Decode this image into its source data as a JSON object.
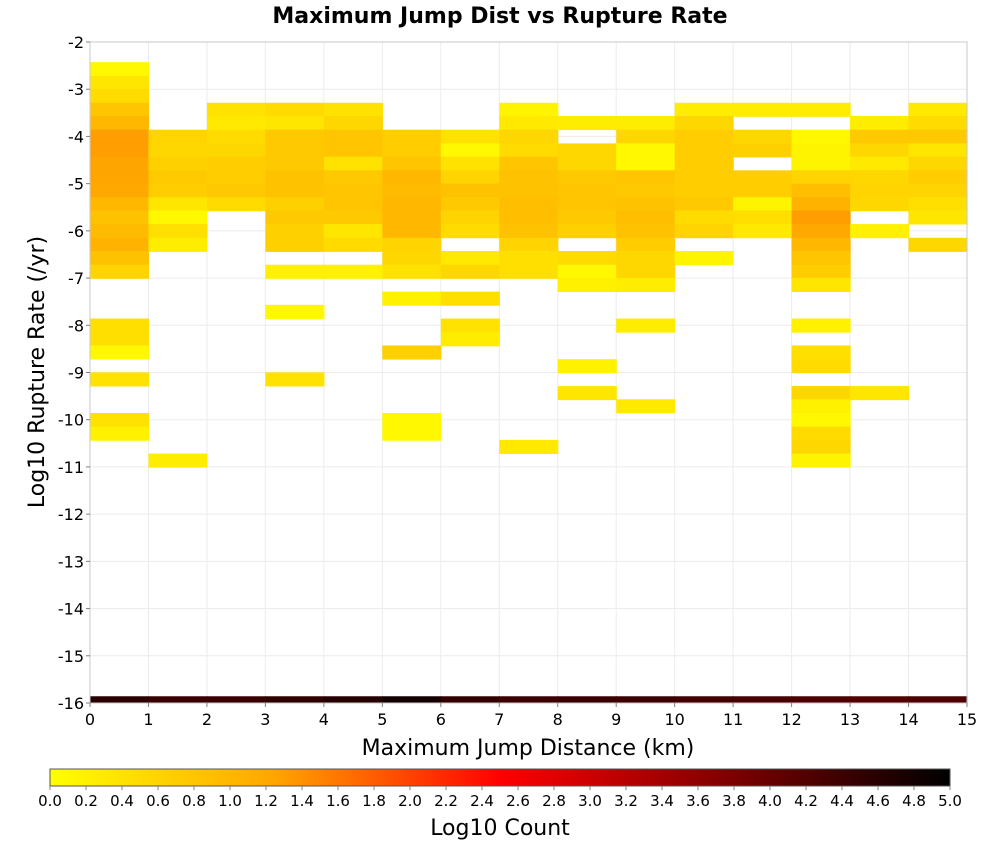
{
  "chart_data": {
    "type": "heatmap",
    "title": "Maximum Jump Dist vs Rupture Rate",
    "xlabel": "Maximum Jump Distance (km)",
    "ylabel": "Log10 Rupture Rate (/yr)",
    "colorbar_label": "Log10 Count",
    "xlim": [
      0,
      15
    ],
    "ylim": [
      -16,
      -2
    ],
    "x_ticks": [
      "0",
      "1",
      "2",
      "3",
      "4",
      "5",
      "6",
      "7",
      "8",
      "9",
      "10",
      "11",
      "12",
      "13",
      "14",
      "15"
    ],
    "y_ticks": [
      "-2",
      "-3",
      "-4",
      "-5",
      "-6",
      "-7",
      "-8",
      "-9",
      "-10",
      "-11",
      "-12",
      "-13",
      "-14",
      "-15",
      "-16"
    ],
    "colorbar_ticks": [
      "0.0",
      "0.2",
      "0.4",
      "0.6",
      "0.8",
      "1.0",
      "1.2",
      "1.4",
      "1.6",
      "1.8",
      "2.0",
      "2.2",
      "2.4",
      "2.6",
      "2.8",
      "3.0",
      "3.2",
      "3.4",
      "3.6",
      "3.8",
      "4.0",
      "4.2",
      "4.4",
      "4.6",
      "4.8",
      "5.0"
    ],
    "colorbar_range": [
      0,
      5
    ],
    "colorscale": [
      "#ffff00",
      "#ffa500",
      "#ff0000",
      "#800000",
      "#000000"
    ],
    "grid": true,
    "x_bin_width": 1,
    "y_bin_height": 0.2857,
    "cells": [
      [
        0,
        -2.57,
        0.1
      ],
      [
        0,
        -2.86,
        0.35
      ],
      [
        0,
        -3.14,
        0.5
      ],
      [
        0,
        -3.43,
        0.8
      ],
      [
        0,
        -3.71,
        1.0
      ],
      [
        0,
        -4.0,
        1.3
      ],
      [
        0,
        -4.29,
        1.3
      ],
      [
        0,
        -4.57,
        1.25
      ],
      [
        0,
        -4.86,
        1.25
      ],
      [
        0,
        -5.14,
        1.2
      ],
      [
        0,
        -5.43,
        1.0
      ],
      [
        0,
        -5.71,
        0.85
      ],
      [
        0,
        -6.0,
        0.95
      ],
      [
        0,
        -6.29,
        1.05
      ],
      [
        0,
        -6.57,
        0.85
      ],
      [
        0,
        -6.86,
        0.6
      ],
      [
        0,
        -8.0,
        0.45
      ],
      [
        0,
        -8.29,
        0.45
      ],
      [
        0,
        -8.57,
        0.1
      ],
      [
        0,
        -9.14,
        0.4
      ],
      [
        0,
        -10.0,
        0.4
      ],
      [
        0,
        -10.29,
        0.2
      ],
      [
        1,
        -4.0,
        0.6
      ],
      [
        1,
        -4.29,
        0.55
      ],
      [
        1,
        -4.57,
        0.65
      ],
      [
        1,
        -4.86,
        0.75
      ],
      [
        1,
        -5.14,
        0.7
      ],
      [
        1,
        -5.43,
        0.35
      ],
      [
        1,
        -5.71,
        0.1
      ],
      [
        1,
        -6.0,
        0.45
      ],
      [
        1,
        -6.29,
        0.25
      ],
      [
        1,
        -10.86,
        0.25
      ],
      [
        2,
        -3.43,
        0.4
      ],
      [
        2,
        -3.71,
        0.3
      ],
      [
        2,
        -4.0,
        0.5
      ],
      [
        2,
        -4.29,
        0.55
      ],
      [
        2,
        -4.57,
        0.7
      ],
      [
        2,
        -4.86,
        0.7
      ],
      [
        2,
        -5.14,
        0.75
      ],
      [
        2,
        -5.43,
        0.5
      ],
      [
        3,
        -3.43,
        0.5
      ],
      [
        3,
        -3.71,
        0.35
      ],
      [
        3,
        -4.0,
        0.75
      ],
      [
        3,
        -4.29,
        0.75
      ],
      [
        3,
        -4.57,
        0.75
      ],
      [
        3,
        -4.86,
        0.85
      ],
      [
        3,
        -5.14,
        0.85
      ],
      [
        3,
        -5.43,
        0.65
      ],
      [
        3,
        -5.71,
        0.75
      ],
      [
        3,
        -6.0,
        0.65
      ],
      [
        3,
        -6.29,
        0.65
      ],
      [
        3,
        -6.86,
        0.2
      ],
      [
        3,
        -7.71,
        0.1
      ],
      [
        3,
        -9.14,
        0.4
      ],
      [
        4,
        -3.43,
        0.4
      ],
      [
        4,
        -3.71,
        0.55
      ],
      [
        4,
        -4.0,
        0.8
      ],
      [
        4,
        -4.29,
        0.8
      ],
      [
        4,
        -4.57,
        0.4
      ],
      [
        4,
        -4.86,
        0.75
      ],
      [
        4,
        -5.14,
        0.8
      ],
      [
        4,
        -5.43,
        0.8
      ],
      [
        4,
        -5.71,
        0.75
      ],
      [
        4,
        -6.0,
        0.35
      ],
      [
        4,
        -6.29,
        0.5
      ],
      [
        4,
        -6.86,
        0.2
      ],
      [
        5,
        -4.0,
        0.7
      ],
      [
        5,
        -4.29,
        0.7
      ],
      [
        5,
        -4.57,
        0.8
      ],
      [
        5,
        -4.86,
        1.0
      ],
      [
        5,
        -5.14,
        0.95
      ],
      [
        5,
        -5.43,
        1.0
      ],
      [
        5,
        -5.71,
        1.0
      ],
      [
        5,
        -6.0,
        1.0
      ],
      [
        5,
        -6.29,
        0.6
      ],
      [
        5,
        -6.57,
        0.55
      ],
      [
        5,
        -6.86,
        0.4
      ],
      [
        5,
        -7.43,
        0.2
      ],
      [
        5,
        -8.57,
        0.65
      ],
      [
        5,
        -10.0,
        0.1
      ],
      [
        5,
        -10.29,
        0.1
      ],
      [
        6,
        -4.0,
        0.4
      ],
      [
        6,
        -4.29,
        0.1
      ],
      [
        6,
        -4.57,
        0.4
      ],
      [
        6,
        -4.86,
        0.6
      ],
      [
        6,
        -5.14,
        0.85
      ],
      [
        6,
        -5.43,
        0.75
      ],
      [
        6,
        -5.71,
        0.6
      ],
      [
        6,
        -6.0,
        0.5
      ],
      [
        6,
        -6.57,
        0.3
      ],
      [
        6,
        -6.86,
        0.55
      ],
      [
        6,
        -7.43,
        0.45
      ],
      [
        6,
        -8.0,
        0.4
      ],
      [
        6,
        -8.29,
        0.25
      ],
      [
        7,
        -3.43,
        0.15
      ],
      [
        7,
        -3.71,
        0.3
      ],
      [
        7,
        -4.0,
        0.55
      ],
      [
        7,
        -4.29,
        0.5
      ],
      [
        7,
        -4.57,
        0.8
      ],
      [
        7,
        -4.86,
        0.85
      ],
      [
        7,
        -5.14,
        0.85
      ],
      [
        7,
        -5.43,
        0.9
      ],
      [
        7,
        -5.71,
        0.9
      ],
      [
        7,
        -6.0,
        0.85
      ],
      [
        7,
        -6.29,
        0.6
      ],
      [
        7,
        -6.57,
        0.45
      ],
      [
        7,
        -6.86,
        0.45
      ],
      [
        7,
        -10.57,
        0.3
      ],
      [
        8,
        -3.71,
        0.25
      ],
      [
        8,
        -4.29,
        0.55
      ],
      [
        8,
        -4.57,
        0.55
      ],
      [
        8,
        -4.86,
        0.75
      ],
      [
        8,
        -5.14,
        0.8
      ],
      [
        8,
        -5.43,
        0.8
      ],
      [
        8,
        -5.71,
        0.75
      ],
      [
        8,
        -6.0,
        0.65
      ],
      [
        8,
        -6.57,
        0.5
      ],
      [
        8,
        -6.86,
        0.1
      ],
      [
        8,
        -7.14,
        0.2
      ],
      [
        8,
        -8.86,
        0.2
      ],
      [
        8,
        -9.43,
        0.35
      ],
      [
        9,
        -3.71,
        0.25
      ],
      [
        9,
        -4.0,
        0.55
      ],
      [
        9,
        -4.29,
        0.1
      ],
      [
        9,
        -4.57,
        0.1
      ],
      [
        9,
        -4.86,
        0.8
      ],
      [
        9,
        -5.14,
        0.75
      ],
      [
        9,
        -5.43,
        0.85
      ],
      [
        9,
        -5.71,
        0.9
      ],
      [
        9,
        -6.0,
        0.85
      ],
      [
        9,
        -6.29,
        0.7
      ],
      [
        9,
        -6.57,
        0.55
      ],
      [
        9,
        -6.86,
        0.55
      ],
      [
        9,
        -7.14,
        0.25
      ],
      [
        9,
        -8.0,
        0.25
      ],
      [
        9,
        -9.71,
        0.3
      ],
      [
        10,
        -3.43,
        0.25
      ],
      [
        10,
        -3.71,
        0.55
      ],
      [
        10,
        -4.0,
        0.7
      ],
      [
        10,
        -4.29,
        0.7
      ],
      [
        10,
        -4.57,
        0.7
      ],
      [
        10,
        -4.86,
        0.7
      ],
      [
        10,
        -5.14,
        0.7
      ],
      [
        10,
        -5.43,
        0.75
      ],
      [
        10,
        -5.71,
        0.5
      ],
      [
        10,
        -6.0,
        0.6
      ],
      [
        10,
        -6.57,
        0.15
      ],
      [
        11,
        -3.43,
        0.25
      ],
      [
        11,
        -4.0,
        0.55
      ],
      [
        11,
        -4.29,
        0.65
      ],
      [
        11,
        -4.86,
        0.7
      ],
      [
        11,
        -5.14,
        0.7
      ],
      [
        11,
        -5.43,
        0.15
      ],
      [
        11,
        -5.71,
        0.45
      ],
      [
        11,
        -6.0,
        0.3
      ],
      [
        12,
        -3.43,
        0.25
      ],
      [
        12,
        -4.0,
        0.1
      ],
      [
        12,
        -4.29,
        0.15
      ],
      [
        12,
        -4.57,
        0.15
      ],
      [
        12,
        -4.86,
        0.6
      ],
      [
        12,
        -5.14,
        0.9
      ],
      [
        12,
        -5.43,
        1.05
      ],
      [
        12,
        -5.71,
        1.3
      ],
      [
        12,
        -6.0,
        1.2
      ],
      [
        12,
        -6.29,
        1.0
      ],
      [
        12,
        -6.57,
        0.8
      ],
      [
        12,
        -6.86,
        0.7
      ],
      [
        12,
        -7.14,
        0.35
      ],
      [
        12,
        -8.0,
        0.2
      ],
      [
        12,
        -8.57,
        0.45
      ],
      [
        12,
        -8.86,
        0.5
      ],
      [
        12,
        -9.43,
        0.55
      ],
      [
        12,
        -9.71,
        0.2
      ],
      [
        12,
        -10.0,
        0.1
      ],
      [
        12,
        -10.29,
        0.5
      ],
      [
        12,
        -10.57,
        0.55
      ],
      [
        12,
        -10.86,
        0.15
      ],
      [
        13,
        -3.71,
        0.25
      ],
      [
        13,
        -4.0,
        0.75
      ],
      [
        13,
        -4.29,
        0.55
      ],
      [
        13,
        -4.57,
        0.3
      ],
      [
        13,
        -4.86,
        0.55
      ],
      [
        13,
        -5.14,
        0.6
      ],
      [
        13,
        -5.43,
        0.55
      ],
      [
        13,
        -6.0,
        0.2
      ],
      [
        13,
        -9.43,
        0.35
      ],
      [
        14,
        -3.43,
        0.3
      ],
      [
        14,
        -3.71,
        0.5
      ],
      [
        14,
        -4.0,
        0.75
      ],
      [
        14,
        -4.29,
        0.35
      ],
      [
        14,
        -4.57,
        0.55
      ],
      [
        14,
        -4.86,
        0.7
      ],
      [
        14,
        -5.14,
        0.6
      ],
      [
        14,
        -5.43,
        0.45
      ],
      [
        14,
        -5.71,
        0.35
      ],
      [
        14,
        -6.29,
        0.55
      ]
    ],
    "bottom_row": {
      "y": -16,
      "values": [
        4.6,
        4.45,
        4.45,
        4.55,
        4.65,
        4.8,
        4.5,
        4.4,
        4.45,
        4.4,
        4.35,
        4.3,
        4.25,
        4.2,
        4.25
      ]
    }
  }
}
